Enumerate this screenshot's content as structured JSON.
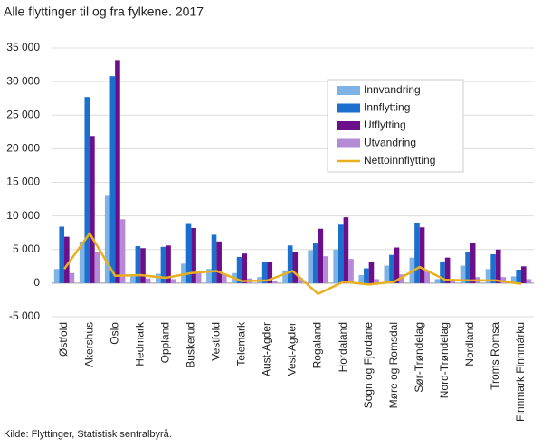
{
  "chart_data": {
    "type": "bar",
    "title": "Alle flyttinger til og fra fylkene. 2017",
    "source": "Kilde: Flyttinger, Statistisk sentralbyrå.",
    "categories": [
      "Østfold",
      "Akershus",
      "Oslo",
      "Hedmark",
      "Oppland",
      "Buskerud",
      "Vestfold",
      "Telemark",
      "Aust-Agder",
      "Vest-Agder",
      "Rogaland",
      "Hordaland",
      "Sogn og Fjordane",
      "Møre og Romsdal",
      "Sør-Trøndelag",
      "Nord-Trøndelag",
      "Nordland",
      "Troms Romsa",
      "Finnmark Finnmárku"
    ],
    "series": [
      {
        "name": "Innvandring",
        "color": "#7fb2e5",
        "type": "bar",
        "values": [
          2100,
          6200,
          13000,
          1000,
          1400,
          2900,
          2100,
          1500,
          900,
          1900,
          4900,
          5000,
          1200,
          2600,
          3800,
          600,
          2600,
          2100,
          1000
        ]
      },
      {
        "name": "Innflytting",
        "color": "#1a6fcf",
        "type": "bar",
        "values": [
          8400,
          27700,
          30800,
          5500,
          5400,
          8800,
          7200,
          3900,
          3200,
          5600,
          5900,
          8700,
          2200,
          4200,
          9000,
          3200,
          4700,
          4300,
          2000
        ]
      },
      {
        "name": "Utflytting",
        "color": "#6b0f8a",
        "type": "bar",
        "values": [
          6900,
          21900,
          33200,
          5200,
          5600,
          8200,
          6200,
          4400,
          3100,
          4700,
          8100,
          9800,
          3100,
          5300,
          8300,
          3800,
          6000,
          5000,
          2500
        ]
      },
      {
        "name": "Utvandring",
        "color": "#b58ad6",
        "type": "bar",
        "values": [
          1500,
          4600,
          9500,
          700,
          600,
          1600,
          1400,
          700,
          400,
          800,
          4000,
          3600,
          600,
          1300,
          1700,
          400,
          900,
          900,
          600
        ]
      },
      {
        "name": "Nettoinnflytting",
        "color": "#e8b020",
        "type": "line",
        "values": [
          2100,
          7400,
          1100,
          1200,
          800,
          1500,
          1800,
          300,
          400,
          1800,
          -1600,
          200,
          -200,
          200,
          2400,
          500,
          400,
          400,
          -100
        ]
      }
    ],
    "ylim": [
      -5000,
      35000
    ],
    "yticks": [
      {
        "value": -5000,
        "label": "-5 000"
      },
      0,
      {
        "value": 5000,
        "label": "5 000"
      },
      {
        "value": 10000,
        "label": "10 000"
      },
      {
        "value": 15000,
        "label": "15 000"
      },
      {
        "value": 20000,
        "label": "20 000"
      },
      {
        "value": 25000,
        "label": "25 000"
      },
      {
        "value": 30000,
        "label": "30 000"
      },
      {
        "value": 35000,
        "label": "35 000"
      }
    ],
    "grid": true
  }
}
